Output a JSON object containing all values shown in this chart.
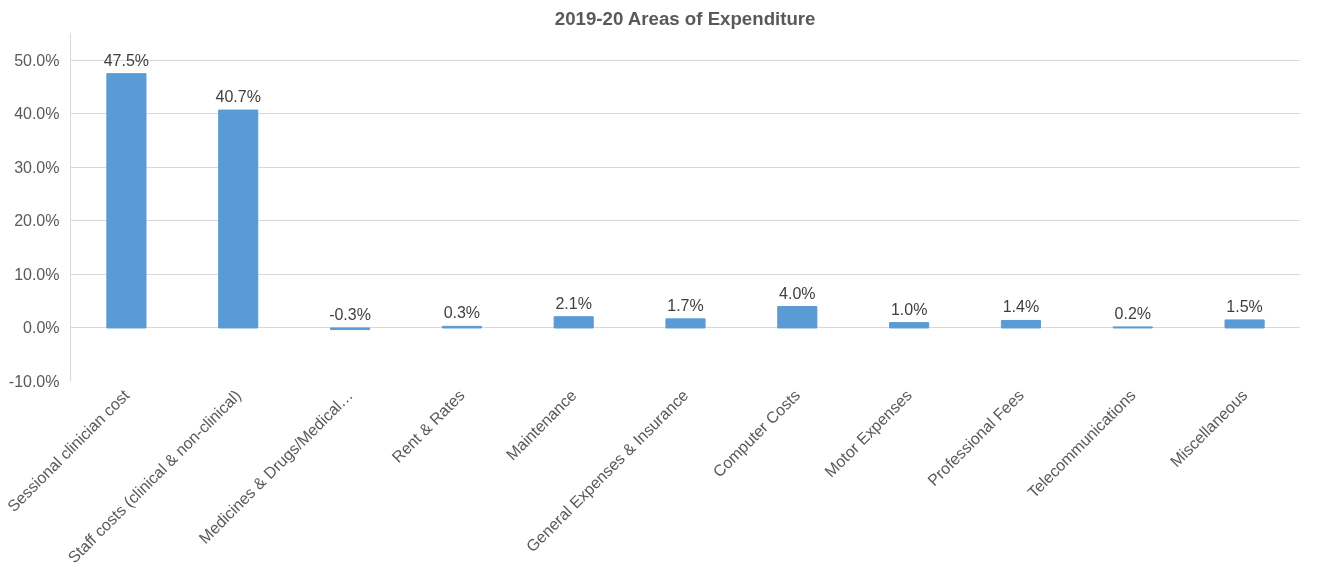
{
  "chart_data": {
    "type": "bar",
    "title": "2019-20 Areas of Expenditure",
    "categories": [
      "Sessional clinician cost",
      "Staff costs (clinical & non-clinical)",
      "Medicines & Drugs/Medical…",
      "Rent & Rates",
      "Maintenance",
      "General Expenses & Insurance",
      "Computer Costs",
      "Motor Expenses",
      "Professional Fees",
      "Telecommunications",
      "Miscellaneous"
    ],
    "values": [
      47.5,
      40.7,
      -0.3,
      0.3,
      2.1,
      1.7,
      4.0,
      1.0,
      1.4,
      0.2,
      1.5
    ],
    "value_labels": [
      "47.5%",
      "40.7%",
      "-0.3%",
      "0.3%",
      "2.1%",
      "1.7%",
      "4.0%",
      "1.0%",
      "1.4%",
      "0.2%",
      "1.5%"
    ],
    "color": "#5b9bd5",
    "ylim": [
      -10,
      55
    ],
    "yticks": [
      {
        "value": -10,
        "label": "-10.0%"
      },
      {
        "value": 0,
        "label": "0.0%"
      },
      {
        "value": 10,
        "label": "10.0%"
      },
      {
        "value": 20,
        "label": "20.0%"
      },
      {
        "value": 30,
        "label": "30.0%"
      },
      {
        "value": 40,
        "label": "40.0%"
      },
      {
        "value": 50,
        "label": "50.0%"
      }
    ],
    "grid": "y"
  }
}
